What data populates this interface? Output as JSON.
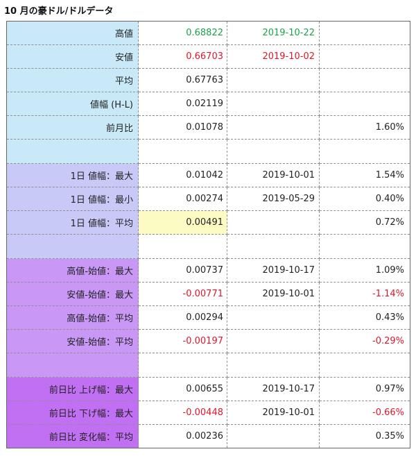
{
  "title": "10 月の豪ドル/ドルデータ",
  "colors": {
    "group_high_low": "#c9e9f9",
    "group_daily_range": "#c8c9f7",
    "group_open_diff": "#c998f7",
    "group_prev_day": "#c270f3",
    "highlight_cell": "#fdfbc4",
    "text_green": "#1aa24a",
    "text_red": "#e1162a",
    "text_default": "#222222"
  },
  "rows": [
    {
      "group": "group_high_low",
      "label": "高値",
      "value": "0.68822",
      "date": "2019-10-22",
      "pct": "",
      "value_color": "green",
      "date_color": "green",
      "pct_color": ""
    },
    {
      "group": "group_high_low",
      "label": "安値",
      "value": "0.66703",
      "date": "2019-10-02",
      "pct": "",
      "value_color": "red",
      "date_color": "red",
      "pct_color": ""
    },
    {
      "group": "group_high_low",
      "label": "平均",
      "value": "0.67763",
      "date": "",
      "pct": "",
      "value_color": "",
      "date_color": "",
      "pct_color": ""
    },
    {
      "group": "group_high_low",
      "label": "値幅 (H-L)",
      "value": "0.02119",
      "date": "",
      "pct": "",
      "value_color": "",
      "date_color": "",
      "pct_color": ""
    },
    {
      "group": "group_high_low",
      "label": "前月比",
      "value": "0.01078",
      "date": "",
      "pct": "1.60%",
      "value_color": "",
      "date_color": "",
      "pct_color": ""
    },
    {
      "group": "group_high_low",
      "label": "",
      "value": "",
      "date": "",
      "pct": "",
      "blank": true
    },
    {
      "group": "group_daily_range",
      "label": "1日 値幅：最大",
      "value": "0.01042",
      "date": "2019-10-01",
      "pct": "1.54%",
      "value_color": "",
      "date_color": "",
      "pct_color": ""
    },
    {
      "group": "group_daily_range",
      "label": "1日 値幅：最小",
      "value": "0.00274",
      "date": "2019-05-29",
      "pct": "0.40%",
      "value_color": "",
      "date_color": "",
      "pct_color": ""
    },
    {
      "group": "group_daily_range",
      "label": "1日 値幅：平均",
      "value": "0.00491",
      "date": "",
      "pct": "0.72%",
      "value_color": "",
      "date_color": "",
      "pct_color": "",
      "value_highlight": true
    },
    {
      "group": "group_daily_range",
      "label": "",
      "value": "",
      "date": "",
      "pct": "",
      "blank": true
    },
    {
      "group": "group_open_diff",
      "label": "高値-始値：最大",
      "value": "0.00737",
      "date": "2019-10-17",
      "pct": "1.09%",
      "value_color": "",
      "date_color": "",
      "pct_color": ""
    },
    {
      "group": "group_open_diff",
      "label": "安値-始値：最大",
      "value": "-0.00771",
      "date": "2019-10-01",
      "pct": "-1.14%",
      "value_color": "red",
      "date_color": "",
      "pct_color": "red"
    },
    {
      "group": "group_open_diff",
      "label": "高値-始値：平均",
      "value": "0.00294",
      "date": "",
      "pct": "0.43%",
      "value_color": "",
      "date_color": "",
      "pct_color": ""
    },
    {
      "group": "group_open_diff",
      "label": "安値-始値：平均",
      "value": "-0.00197",
      "date": "",
      "pct": "-0.29%",
      "value_color": "red",
      "date_color": "",
      "pct_color": "red"
    },
    {
      "group": "group_open_diff",
      "label": "",
      "value": "",
      "date": "",
      "pct": "",
      "blank": true
    },
    {
      "group": "group_prev_day",
      "label": "前日比 上げ幅：最大",
      "value": "0.00655",
      "date": "2019-10-17",
      "pct": "0.97%",
      "value_color": "",
      "date_color": "",
      "pct_color": ""
    },
    {
      "group": "group_prev_day",
      "label": "前日比 下げ幅：最大",
      "value": "-0.00448",
      "date": "2019-10-01",
      "pct": "-0.66%",
      "value_color": "red",
      "date_color": "",
      "pct_color": "red"
    },
    {
      "group": "group_prev_day",
      "label": "前日比 変化幅：平均",
      "value": "0.00236",
      "date": "",
      "pct": "0.35%",
      "value_color": "",
      "date_color": "",
      "pct_color": ""
    }
  ]
}
